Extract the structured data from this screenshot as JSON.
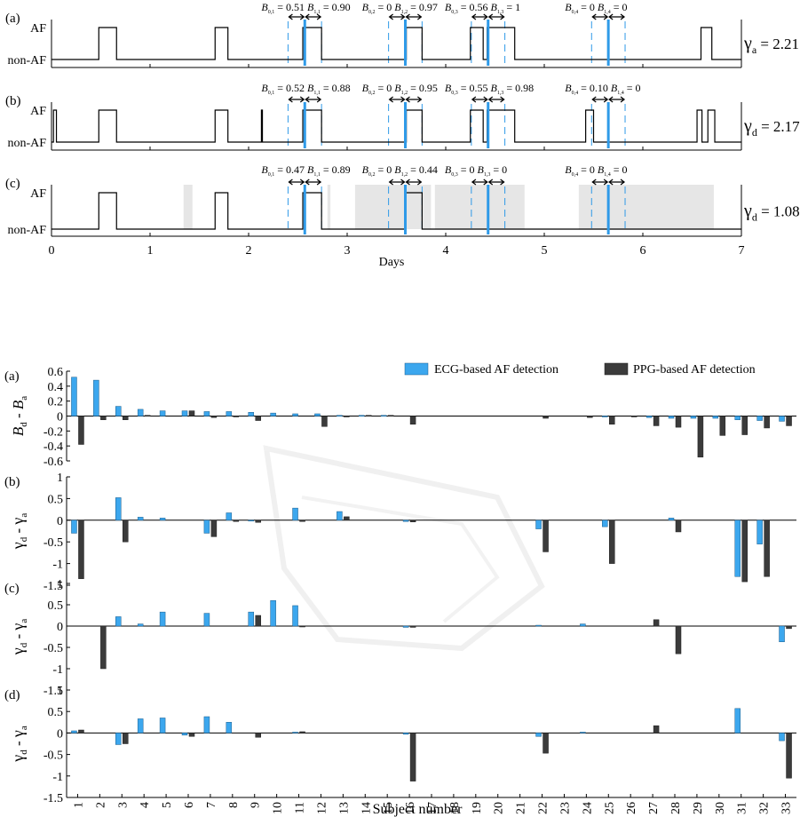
{
  "top_panels": {
    "xlabel": "Days",
    "xticks": [
      "0",
      "1",
      "2",
      "3",
      "4",
      "5",
      "6",
      "7"
    ],
    "xlim": [
      0,
      7
    ],
    "state_labels": [
      "AF",
      "non-AF"
    ],
    "panels": [
      {
        "panel_label": "(a)",
        "gamma_symbol": "γ",
        "gamma_sub": "a",
        "gamma_value": "= 2.21",
        "af_episodes": [
          [
            0.48,
            0.66
          ],
          [
            1.66,
            1.79
          ],
          [
            2.55,
            2.74
          ],
          [
            3.6,
            3.76
          ],
          [
            4.25,
            4.38
          ],
          [
            4.42,
            4.7
          ],
          [
            6.59,
            6.7
          ]
        ],
        "peaks": [
          2.57,
          3.59,
          4.43,
          5.65
        ],
        "b_labels": [
          {
            "b0": "0.51",
            "b1": "0.90",
            "s0": "0,1",
            "s1": "1,1"
          },
          {
            "b0": "0",
            "b1": "0.97",
            "s0": "0,2",
            "s1": "1,2"
          },
          {
            "b0": "0.56",
            "b1": "1",
            "s0": "0,3",
            "s1": "1,3"
          },
          {
            "b0": "0",
            "b1": "0",
            "s0": "0,4",
            "s1": "1,4"
          }
        ]
      },
      {
        "panel_label": "(b)",
        "gamma_symbol": "γ",
        "gamma_sub": "d",
        "gamma_value": "= 2.17",
        "af_episodes": [
          [
            0.02,
            0.05
          ],
          [
            0.48,
            0.66
          ],
          [
            1.66,
            1.79
          ],
          [
            2.13,
            2.14
          ],
          [
            2.55,
            2.74
          ],
          [
            3.6,
            3.76
          ],
          [
            4.25,
            4.38
          ],
          [
            4.42,
            4.7
          ],
          [
            5.42,
            5.5
          ],
          [
            6.55,
            6.6
          ],
          [
            6.66,
            6.73
          ]
        ],
        "peaks": [
          2.57,
          3.59,
          4.43,
          5.65
        ],
        "b_labels": [
          {
            "b0": "0.52",
            "b1": "0.88",
            "s0": "0,1",
            "s1": "1,1"
          },
          {
            "b0": "0",
            "b1": "0.95",
            "s0": "0,2",
            "s1": "1,2"
          },
          {
            "b0": "0.55",
            "b1": "0.98",
            "s0": "0,3",
            "s1": "1,3"
          },
          {
            "b0": "0.10",
            "b1": "0",
            "s0": "0,4",
            "s1": "1,4"
          }
        ]
      },
      {
        "panel_label": "(c)",
        "gamma_symbol": "γ",
        "gamma_sub": "d",
        "gamma_value": "= 1.08",
        "af_episodes": [
          [
            0.48,
            0.66
          ],
          [
            1.66,
            1.79
          ],
          [
            2.55,
            2.74
          ],
          [
            3.59,
            3.76
          ]
        ],
        "gaps": [
          [
            1.34,
            1.43
          ],
          [
            2.8,
            2.83
          ],
          [
            3.08,
            3.85
          ],
          [
            3.89,
            4.8
          ],
          [
            5.35,
            6.72
          ]
        ],
        "peaks": [
          2.57,
          3.59,
          4.43,
          5.65
        ],
        "b_labels": [
          {
            "b0": "0.47",
            "b1": "0.89",
            "s0": "0,1",
            "s1": "1,1"
          },
          {
            "b0": "0",
            "b1": "0.44",
            "s0": "0,2",
            "s1": "1,2"
          },
          {
            "b0": "0",
            "b1": "0",
            "s0": "0,3",
            "s1": "1,3"
          },
          {
            "b0": "0",
            "b1": "0",
            "s0": "0,4",
            "s1": "1,4"
          }
        ]
      }
    ]
  },
  "chart_data": {
    "type": "bar",
    "xlabel": "Subject number",
    "legend": {
      "placement": "top-right",
      "entries": [
        "ECG-based AF detection",
        "PPG-based AF detection"
      ]
    },
    "colors": {
      "ecg": "#3ca7ee",
      "ppg": "#3b3b3b"
    },
    "categories": [
      "1",
      "2",
      "3",
      "4",
      "5",
      "6",
      "7",
      "8",
      "9",
      "10",
      "11",
      "12",
      "13",
      "14",
      "15",
      "16",
      "17",
      "18",
      "19",
      "20",
      "21",
      "22",
      "23",
      "24",
      "25",
      "26",
      "27",
      "28",
      "29",
      "30",
      "31",
      "32",
      "33"
    ],
    "panels": [
      {
        "panel_label": "(a)",
        "ylabel": "B_d - B_a",
        "ylim": [
          -0.6,
          0.6
        ],
        "yticks": [
          "0.6",
          "0.4",
          "0.2",
          "0",
          "-0.2",
          "-0.4",
          "-0.6"
        ],
        "series": [
          {
            "name": "ECG-based AF detection",
            "values": [
              0.52,
              0.48,
              0.13,
              0.09,
              0.07,
              0.07,
              0.06,
              0.06,
              0.05,
              0.04,
              0.03,
              0.03,
              0.01,
              0.01,
              0.01,
              0,
              0,
              0,
              0,
              0,
              0,
              0,
              0,
              0,
              -0.01,
              0,
              -0.02,
              -0.03,
              -0.03,
              -0.03,
              -0.05,
              -0.06,
              -0.07
            ]
          },
          {
            "name": "PPG-based AF detection",
            "values": [
              -0.38,
              -0.05,
              -0.05,
              0.01,
              0,
              0.07,
              -0.02,
              -0.01,
              -0.06,
              0,
              0,
              -0.14,
              -0.01,
              0.01,
              0.01,
              -0.11,
              0,
              0,
              0,
              0,
              0,
              -0.03,
              0,
              -0.02,
              -0.11,
              -0.01,
              -0.13,
              -0.15,
              -0.55,
              -0.26,
              -0.25,
              -0.16,
              -0.13
            ]
          }
        ]
      },
      {
        "panel_label": "(b)",
        "ylabel": "γd - γa",
        "ylim": [
          -1.5,
          1
        ],
        "yticks": [
          "1",
          "0.5",
          "0",
          "-0.5",
          "-1",
          "-1.5"
        ],
        "series": [
          {
            "name": "ECG-based AF detection",
            "values": [
              -0.3,
              0,
              0.52,
              0.07,
              0.05,
              0,
              -0.3,
              0.17,
              -0.02,
              0,
              0.28,
              0,
              0.2,
              0,
              0,
              -0.03,
              0,
              0,
              0,
              0,
              0,
              -0.2,
              0,
              0,
              -0.15,
              0,
              0,
              0.05,
              0,
              0,
              -1.3,
              -0.55,
              0
            ]
          },
          {
            "name": "PPG-based AF detection",
            "values": [
              -1.35,
              0,
              -0.5,
              0,
              0,
              0,
              -0.38,
              -0.03,
              -0.05,
              0,
              -0.03,
              0,
              0.08,
              0,
              0,
              -0.04,
              0,
              0,
              0,
              0,
              0,
              -0.73,
              0,
              0,
              -1.0,
              0,
              0,
              -0.27,
              0,
              0,
              -1.42,
              -1.3,
              0
            ]
          }
        ]
      },
      {
        "panel_label": "(c)",
        "ylabel": "γd - γa",
        "ylim": [
          -1.5,
          1
        ],
        "yticks": [
          "1",
          "0.5",
          "0",
          "-0.5",
          "-1",
          "-1.5"
        ],
        "series": [
          {
            "name": "ECG-based AF detection",
            "values": [
              0,
              0,
              0.22,
              0.05,
              0.33,
              0,
              0.3,
              0,
              0.33,
              0.6,
              0.48,
              0,
              0,
              0,
              0,
              -0.03,
              0,
              0,
              0,
              0,
              0,
              0.02,
              0,
              0.05,
              0,
              0,
              0,
              0,
              0,
              0,
              0,
              0,
              -0.37
            ]
          },
          {
            "name": "PPG-based AF detection",
            "values": [
              0,
              -1.0,
              0,
              0,
              0,
              0,
              0,
              0,
              0.25,
              0,
              -0.02,
              0,
              0,
              0,
              0,
              -0.03,
              0,
              0,
              0,
              0,
              0,
              0,
              0,
              0,
              0,
              0,
              0.15,
              -0.65,
              0,
              0,
              0,
              0,
              -0.06
            ]
          }
        ]
      },
      {
        "panel_label": "(d)",
        "ylabel": "γd - γa",
        "ylim": [
          -1.5,
          1
        ],
        "yticks": [
          "1",
          "0.5",
          "0",
          "-0.5",
          "-1",
          "-1.5"
        ],
        "series": [
          {
            "name": "ECG-based AF detection",
            "values": [
              0.05,
              0,
              -0.27,
              0.33,
              0.35,
              -0.05,
              0.38,
              0.25,
              0,
              0,
              0.02,
              0,
              0,
              0,
              0,
              -0.03,
              0,
              0,
              0,
              0,
              0,
              -0.08,
              0,
              0.02,
              0,
              0,
              0,
              0,
              0,
              0,
              0.57,
              0,
              -0.18
            ]
          },
          {
            "name": "PPG-based AF detection",
            "values": [
              0.07,
              0,
              -0.25,
              0,
              0,
              -0.08,
              0,
              0,
              -0.1,
              0,
              0.03,
              0,
              0,
              0,
              0,
              -1.12,
              0,
              0,
              0,
              0,
              0,
              -0.47,
              0,
              0,
              0,
              0,
              0.17,
              0,
              0,
              0,
              0,
              0,
              -1.05
            ]
          }
        ]
      }
    ]
  }
}
